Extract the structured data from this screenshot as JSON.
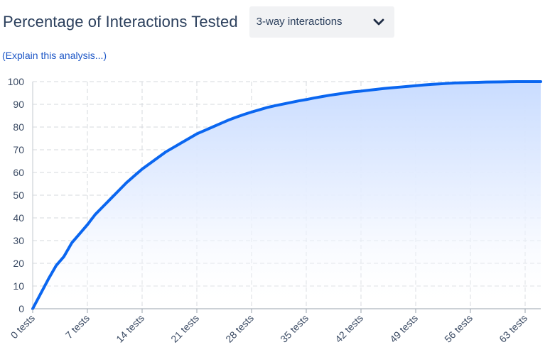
{
  "header": {
    "title": "Percentage of Interactions Tested",
    "dropdown_value": "3-way interactions"
  },
  "explain_link": "(Explain this analysis...)",
  "colors": {
    "line": "#0a66f0",
    "area_top": "#c9dcff",
    "grid": "#d6d9de",
    "text": "#2b3f5c",
    "link": "#1c56c6"
  },
  "icons": {
    "dropdown_chevron": "chevron-down-icon"
  },
  "chart_data": {
    "type": "area",
    "title": "Percentage of Interactions Tested",
    "xlabel": "",
    "ylabel": "",
    "x_tick_labels": [
      "0 tests",
      "7 tests",
      "14 tests",
      "21 tests",
      "28 tests",
      "35 tests",
      "42 tests",
      "49 tests",
      "56 tests",
      "63 tests"
    ],
    "x_tick_values": [
      0,
      7,
      14,
      21,
      28,
      35,
      42,
      49,
      56,
      63
    ],
    "y_ticks": [
      0,
      10,
      20,
      30,
      40,
      50,
      60,
      70,
      80,
      90,
      100
    ],
    "xlim": [
      0,
      65
    ],
    "ylim": [
      0,
      100
    ],
    "grid": true,
    "series": [
      {
        "x": [
          0,
          1,
          2,
          3,
          4,
          5,
          6,
          7,
          8,
          9,
          10,
          11,
          12,
          13,
          14,
          15,
          16,
          17,
          18,
          19,
          20,
          21,
          22,
          23,
          24,
          25,
          26,
          27,
          28,
          29,
          30,
          31,
          32,
          33,
          34,
          35,
          36,
          37,
          38,
          39,
          40,
          41,
          42,
          43,
          44,
          45,
          46,
          47,
          48,
          49,
          50,
          51,
          52,
          53,
          54,
          55,
          56,
          57,
          58,
          59,
          60,
          61,
          62,
          63,
          64,
          65
        ],
        "y": [
          0,
          6.5,
          13,
          19,
          23,
          29,
          33,
          37,
          41.5,
          45,
          48.5,
          52,
          55.5,
          58.5,
          61.5,
          64,
          66.5,
          69,
          71,
          73,
          75,
          77,
          78.5,
          80,
          81.5,
          83,
          84.3,
          85.5,
          86.6,
          87.6,
          88.6,
          89.4,
          90.1,
          90.8,
          91.5,
          92.1,
          92.8,
          93.4,
          94,
          94.5,
          95,
          95.5,
          95.8,
          96.2,
          96.6,
          97,
          97.3,
          97.6,
          97.9,
          98.2,
          98.5,
          98.8,
          99,
          99.2,
          99.4,
          99.5,
          99.6,
          99.7,
          99.8,
          99.85,
          99.9,
          99.95,
          100,
          100,
          100,
          100
        ]
      }
    ]
  }
}
